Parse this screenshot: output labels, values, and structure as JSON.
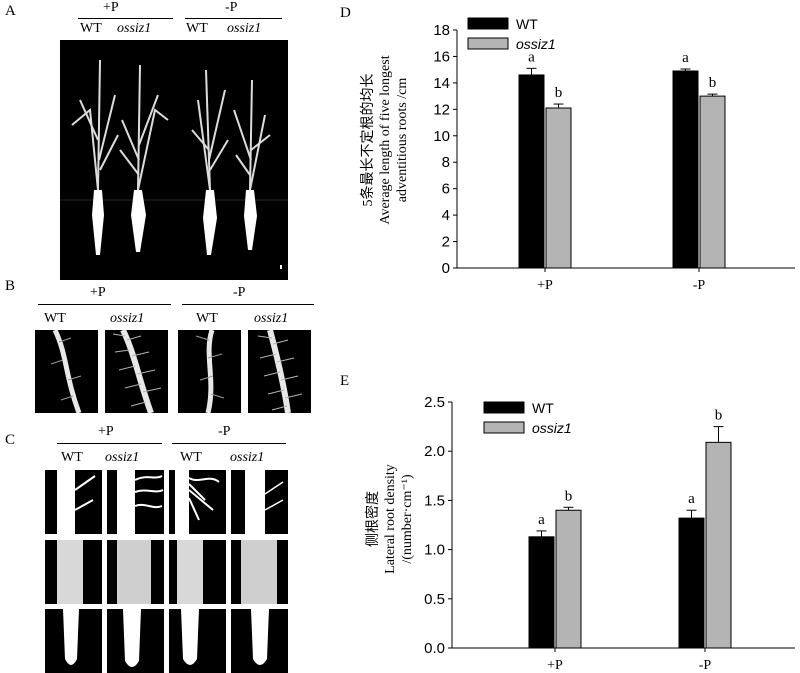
{
  "panels": {
    "A": {
      "letter": "A",
      "conditions": [
        "+P",
        "-P"
      ],
      "genotypes": [
        "WT",
        "ossiz1",
        "WT",
        "ossiz1"
      ]
    },
    "B": {
      "letter": "B",
      "conditions": [
        "+P",
        "-P"
      ],
      "genotypes": [
        "WT",
        "ossiz1",
        "WT",
        "ossiz1"
      ]
    },
    "C": {
      "letter": "C",
      "conditions": [
        "+P",
        "-P"
      ],
      "genotypes": [
        "WT",
        "ossiz1",
        "WT",
        "ossiz1"
      ]
    }
  },
  "chart_data": [
    {
      "letter": "D",
      "type": "bar",
      "categories": [
        "+P",
        "-P"
      ],
      "series": [
        {
          "name": "WT",
          "values": [
            14.6,
            14.9
          ],
          "errors": [
            0.5,
            0.15
          ],
          "labels": [
            "a",
            "a"
          ],
          "color": "#000000"
        },
        {
          "name": "ossiz1",
          "values": [
            12.1,
            13.0
          ],
          "errors": [
            0.3,
            0.15
          ],
          "labels": [
            "b",
            "b"
          ],
          "color": "#b4b4b4"
        }
      ],
      "ylabel_lines": [
        "5条最长不定根的均长",
        "Average length of  five longest",
        "adventitious roots /cm"
      ],
      "ylim": [
        0,
        18
      ],
      "yticks": [
        "0",
        "2",
        "4",
        "6",
        "8",
        "10",
        "12",
        "14",
        "16",
        "18"
      ],
      "legend": "top-left"
    },
    {
      "letter": "E",
      "type": "bar",
      "categories": [
        "+P",
        "-P"
      ],
      "series": [
        {
          "name": "WT",
          "values": [
            1.13,
            1.32
          ],
          "errors": [
            0.06,
            0.08
          ],
          "labels": [
            "a",
            "a"
          ],
          "color": "#000000"
        },
        {
          "name": "ossiz1",
          "values": [
            1.4,
            2.09
          ],
          "errors": [
            0.03,
            0.16
          ],
          "labels": [
            "b",
            "b"
          ],
          "color": "#b4b4b4"
        }
      ],
      "ylabel_lines": [
        "侧根密度",
        "Lateral  root density",
        "/(number·cm⁻¹)"
      ],
      "ylim": [
        0,
        2.5
      ],
      "yticks": [
        "0.0",
        "0.5",
        "1.0",
        "1.5",
        "2.0",
        "2.5"
      ],
      "legend": "top-left"
    }
  ]
}
